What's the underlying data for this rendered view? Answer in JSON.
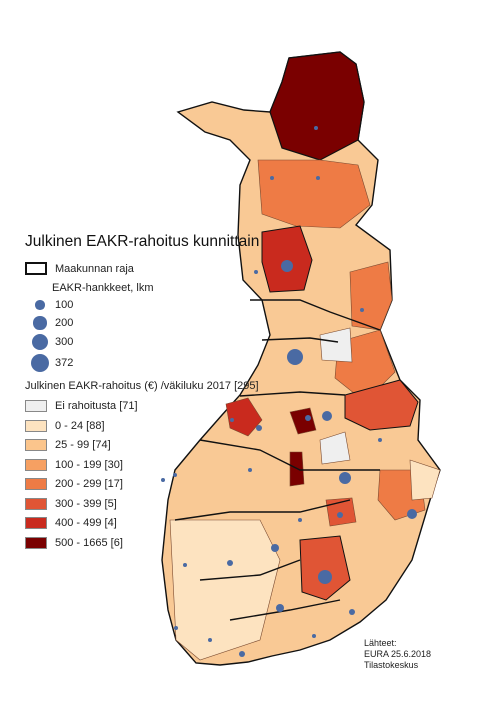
{
  "title": "Julkinen EAKR-rahoitus kunnittain",
  "legend": {
    "region_border_label": "Maakunnan raja",
    "projects_title": "EAKR-hankkeet, lkm",
    "project_sizes": [
      {
        "label": "100",
        "value": 100
      },
      {
        "label": "200",
        "value": 200
      },
      {
        "label": "300",
        "value": 300
      },
      {
        "label": "372",
        "value": 372
      }
    ],
    "funding_title": "Julkinen EAKR-rahoitus (€) /väkiluku 2017 [295]",
    "classes": [
      {
        "label": "Ei rahoitusta [71]",
        "color": "#efefef"
      },
      {
        "label": "0 - 24 [88]",
        "color": "#fde3c0"
      },
      {
        "label": "25 - 99 [74]",
        "color": "#fbc58c"
      },
      {
        "label": "100 - 199 [30]",
        "color": "#f6a062"
      },
      {
        "label": "200 - 299 [17]",
        "color": "#ee7b45"
      },
      {
        "label": "300 - 399 [5]",
        "color": "#e05535"
      },
      {
        "label": "400 - 499 [4]",
        "color": "#c92a1e"
      },
      {
        "label": "500 - 1665  [6]",
        "color": "#7a0000"
      }
    ]
  },
  "colors": {
    "dot": "#4a6aa3",
    "region_border": "#111111",
    "municipality_border": "#7a4a30"
  },
  "sources": {
    "heading": "Lähteet:",
    "line1": "EURA 25.6.2018",
    "line2": "Tilastokeskus"
  }
}
